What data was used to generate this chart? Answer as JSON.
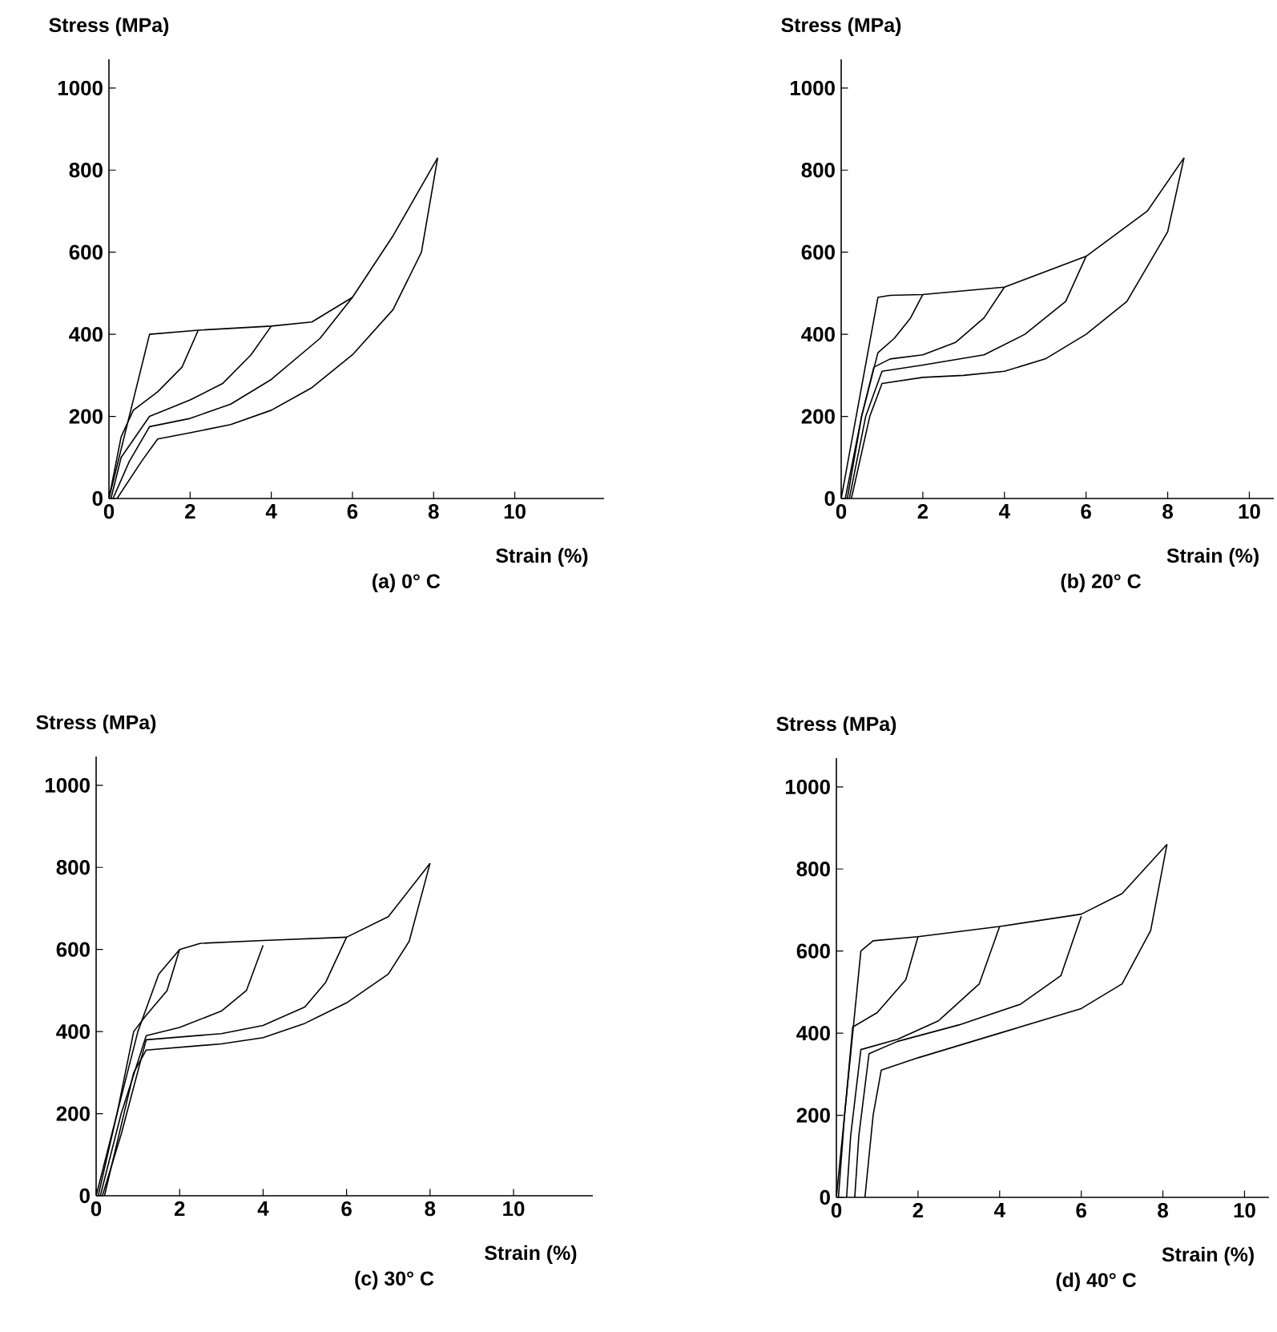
{
  "chart_data": [
    {
      "type": "line",
      "title": "(a) 0° C",
      "xlabel": "Strain (%)",
      "ylabel": "Stress (MPa)",
      "xlim": [
        0,
        12.2
      ],
      "ylim": [
        0,
        1070
      ],
      "xticks": [
        0,
        2,
        4,
        6,
        8,
        10
      ],
      "yticks": [
        0,
        200,
        400,
        600,
        800,
        1000
      ],
      "series": [
        {
          "color": "#000000",
          "x": [
            0,
            1,
            2.2,
            4,
            5,
            6,
            7,
            8.1
          ],
          "values": [
            0,
            400,
            410,
            420,
            430,
            490,
            640,
            830
          ]
        },
        {
          "color": "#000000",
          "x": [
            2.2,
            1.8,
            1.2,
            0.6,
            0.3,
            0
          ],
          "values": [
            410,
            320,
            260,
            215,
            150,
            0
          ]
        },
        {
          "color": "#000000",
          "x": [
            4,
            3.5,
            2.8,
            2,
            1,
            0.3,
            0.05
          ],
          "values": [
            420,
            350,
            280,
            240,
            200,
            100,
            0
          ]
        },
        {
          "color": "#000000",
          "x": [
            6,
            5.2,
            4,
            3,
            2,
            1,
            0.5,
            0.1
          ],
          "values": [
            490,
            390,
            290,
            230,
            195,
            175,
            90,
            0
          ]
        },
        {
          "color": "#000000",
          "x": [
            8.1,
            7.7,
            7,
            6,
            5,
            4,
            3,
            2,
            1.2,
            0.8,
            0.2
          ],
          "values": [
            830,
            600,
            460,
            350,
            270,
            215,
            180,
            160,
            145,
            90,
            0
          ]
        }
      ]
    },
    {
      "type": "line",
      "title": "(b) 20° C",
      "xlabel": "Strain (%)",
      "ylabel": "Stress (MPa)",
      "xlim": [
        0,
        10.6
      ],
      "ylim": [
        0,
        1070
      ],
      "xticks": [
        0,
        2,
        4,
        6,
        8,
        10
      ],
      "yticks": [
        0,
        200,
        400,
        600,
        800,
        1000
      ],
      "series": [
        {
          "color": "#000000",
          "x": [
            0,
            0.9,
            1.2,
            2,
            4,
            6,
            7.5,
            8.4
          ],
          "values": [
            0,
            490,
            495,
            497,
            515,
            590,
            700,
            830
          ]
        },
        {
          "color": "#000000",
          "x": [
            2,
            1.7,
            1.3,
            0.9,
            0.5,
            0.1
          ],
          "values": [
            497,
            440,
            390,
            355,
            200,
            0
          ]
        },
        {
          "color": "#000000",
          "x": [
            4,
            3.5,
            2.8,
            2,
            1.2,
            0.8,
            0.5,
            0.15
          ],
          "values": [
            515,
            440,
            380,
            350,
            340,
            320,
            200,
            0
          ]
        },
        {
          "color": "#000000",
          "x": [
            6,
            5.5,
            4.5,
            3.5,
            2,
            1,
            0.6,
            0.2
          ],
          "values": [
            590,
            480,
            400,
            350,
            325,
            310,
            200,
            0
          ]
        },
        {
          "color": "#000000",
          "x": [
            8.4,
            8,
            7,
            6,
            5,
            4,
            3,
            2,
            1,
            0.7,
            0.25
          ],
          "values": [
            830,
            650,
            480,
            400,
            340,
            310,
            300,
            295,
            280,
            200,
            0
          ]
        }
      ]
    },
    {
      "type": "line",
      "title": "(c) 30° C",
      "xlabel": "Strain (%)",
      "ylabel": "Stress (MPa)",
      "xlim": [
        0,
        11.9
      ],
      "ylim": [
        0,
        1070
      ],
      "xticks": [
        0,
        2,
        4,
        6,
        8,
        10
      ],
      "yticks": [
        0,
        200,
        400,
        600,
        800,
        1000
      ],
      "series": [
        {
          "color": "#000000",
          "x": [
            0,
            1,
            1.5,
            2,
            2.5,
            4,
            6,
            7,
            8
          ],
          "values": [
            0,
            400,
            540,
            600,
            615,
            622,
            630,
            680,
            810
          ]
        },
        {
          "color": "#000000",
          "x": [
            2,
            1.7,
            1.2,
            0.9,
            0.5,
            0.05
          ],
          "values": [
            600,
            500,
            440,
            400,
            200,
            0
          ]
        },
        {
          "color": "#000000",
          "x": [
            4,
            3.6,
            3,
            2,
            1.2,
            0.6,
            0.1
          ],
          "values": [
            610,
            500,
            450,
            410,
            390,
            200,
            0
          ]
        },
        {
          "color": "#000000",
          "x": [
            6,
            5.5,
            5,
            4,
            3,
            1.2,
            0.6,
            0.15
          ],
          "values": [
            630,
            520,
            460,
            415,
            395,
            380,
            150,
            0
          ]
        },
        {
          "color": "#000000",
          "x": [
            8,
            7.5,
            7,
            6,
            5,
            4,
            3,
            1.2,
            0.9,
            0.2
          ],
          "values": [
            810,
            620,
            540,
            470,
            420,
            385,
            370,
            355,
            300,
            0
          ]
        }
      ]
    },
    {
      "type": "line",
      "title": "(d) 40° C",
      "xlabel": "Strain (%)",
      "ylabel": "Stress (MPa)",
      "xlim": [
        0,
        10.6
      ],
      "ylim": [
        0,
        1070
      ],
      "xticks": [
        0,
        2,
        4,
        6,
        8,
        10
      ],
      "yticks": [
        0,
        200,
        400,
        600,
        800,
        1000
      ],
      "series": [
        {
          "color": "#000000",
          "x": [
            0,
            0.6,
            0.9,
            2,
            4,
            6,
            7,
            8.1
          ],
          "values": [
            0,
            600,
            625,
            635,
            660,
            690,
            740,
            860
          ]
        },
        {
          "color": "#000000",
          "x": [
            2,
            1.7,
            1,
            0.4,
            0.2,
            0.05
          ],
          "values": [
            635,
            530,
            450,
            415,
            200,
            0
          ]
        },
        {
          "color": "#000000",
          "x": [
            4,
            3.5,
            2.5,
            1.5,
            0.6,
            0.35,
            0.25
          ],
          "values": [
            660,
            520,
            430,
            385,
            360,
            150,
            0
          ]
        },
        {
          "color": "#000000",
          "x": [
            6,
            5.5,
            4.5,
            3,
            1.5,
            0.8,
            0.55,
            0.45
          ],
          "values": [
            685,
            540,
            470,
            420,
            380,
            350,
            150,
            0
          ]
        },
        {
          "color": "#000000",
          "x": [
            8.1,
            7.7,
            7,
            6,
            4,
            2,
            1.1,
            0.9,
            0.7
          ],
          "values": [
            860,
            650,
            520,
            460,
            400,
            340,
            310,
            200,
            0
          ]
        }
      ]
    }
  ]
}
